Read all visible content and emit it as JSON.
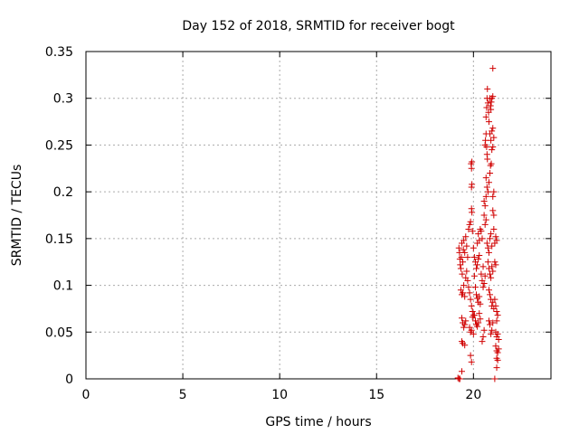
{
  "chart_data": {
    "type": "scatter",
    "title": "Day 152 of 2018, SRMTID for receiver bogt",
    "xlabel": "GPS time / hours",
    "ylabel": "SRMTID / TECUs",
    "xlim": [
      0,
      24
    ],
    "ylim": [
      0,
      0.35
    ],
    "xticks": [
      0,
      5,
      10,
      15,
      20
    ],
    "xtick_labels": [
      "0",
      "5",
      "10",
      "15",
      "20"
    ],
    "yticks": [
      0,
      0.05,
      0.1,
      0.15,
      0.2,
      0.25,
      0.3,
      0.35
    ],
    "ytick_labels": [
      "0",
      "0.05",
      "0.1",
      "0.15",
      "0.2",
      "0.25",
      "0.3",
      "0.35"
    ],
    "grid": true,
    "marker": "+",
    "series": [
      {
        "name": "SRMTID",
        "color": "#d00000",
        "points": [
          [
            19.2,
            0.001
          ],
          [
            19.25,
            0.0
          ],
          [
            19.3,
            0.0
          ],
          [
            19.4,
            0.008
          ],
          [
            19.25,
            0.14
          ],
          [
            19.28,
            0.135
          ],
          [
            19.3,
            0.128
          ],
          [
            19.32,
            0.122
          ],
          [
            19.35,
            0.118
          ],
          [
            19.38,
            0.13
          ],
          [
            19.4,
            0.145
          ],
          [
            19.42,
            0.112
          ],
          [
            19.45,
            0.125
          ],
          [
            19.48,
            0.138
          ],
          [
            19.35,
            0.095
          ],
          [
            19.4,
            0.09
          ],
          [
            19.45,
            0.092
          ],
          [
            19.5,
            0.1
          ],
          [
            19.55,
            0.088
          ],
          [
            19.6,
            0.108
          ],
          [
            19.4,
            0.065
          ],
          [
            19.45,
            0.06
          ],
          [
            19.5,
            0.055
          ],
          [
            19.55,
            0.058
          ],
          [
            19.6,
            0.062
          ],
          [
            19.4,
            0.04
          ],
          [
            19.45,
            0.038
          ],
          [
            19.55,
            0.036
          ],
          [
            19.5,
            0.148
          ],
          [
            19.55,
            0.135
          ],
          [
            19.6,
            0.152
          ],
          [
            19.65,
            0.142
          ],
          [
            19.7,
            0.13
          ],
          [
            19.75,
            0.16
          ],
          [
            19.8,
            0.165
          ],
          [
            19.85,
            0.168
          ],
          [
            19.65,
            0.115
          ],
          [
            19.7,
            0.105
          ],
          [
            19.75,
            0.098
          ],
          [
            19.8,
            0.092
          ],
          [
            19.85,
            0.085
          ],
          [
            19.9,
            0.078
          ],
          [
            19.95,
            0.072
          ],
          [
            20.0,
            0.068
          ],
          [
            19.8,
            0.055
          ],
          [
            19.85,
            0.05
          ],
          [
            19.9,
            0.052
          ],
          [
            19.95,
            0.066
          ],
          [
            20.0,
            0.048
          ],
          [
            19.85,
            0.025
          ],
          [
            19.9,
            0.018
          ],
          [
            19.88,
            0.23
          ],
          [
            19.9,
            0.225
          ],
          [
            19.92,
            0.232
          ],
          [
            19.9,
            0.205
          ],
          [
            19.92,
            0.208
          ],
          [
            19.9,
            0.182
          ],
          [
            19.92,
            0.178
          ],
          [
            19.95,
            0.158
          ],
          [
            20.0,
            0.14
          ],
          [
            20.05,
            0.13
          ],
          [
            20.1,
            0.125
          ],
          [
            20.15,
            0.118
          ],
          [
            20.2,
            0.122
          ],
          [
            20.25,
            0.128
          ],
          [
            20.3,
            0.132
          ],
          [
            20.05,
            0.11
          ],
          [
            20.1,
            0.098
          ],
          [
            20.15,
            0.09
          ],
          [
            20.2,
            0.086
          ],
          [
            20.25,
            0.082
          ],
          [
            20.3,
            0.088
          ],
          [
            20.35,
            0.08
          ],
          [
            20.05,
            0.068
          ],
          [
            20.1,
            0.062
          ],
          [
            20.15,
            0.058
          ],
          [
            20.2,
            0.056
          ],
          [
            20.25,
            0.06
          ],
          [
            20.3,
            0.07
          ],
          [
            20.35,
            0.064
          ],
          [
            20.2,
            0.145
          ],
          [
            20.25,
            0.155
          ],
          [
            20.3,
            0.148
          ],
          [
            20.35,
            0.16
          ],
          [
            20.4,
            0.158
          ],
          [
            20.45,
            0.15
          ],
          [
            20.4,
            0.112
          ],
          [
            20.45,
            0.105
          ],
          [
            20.5,
            0.098
          ],
          [
            20.55,
            0.102
          ],
          [
            20.6,
            0.11
          ],
          [
            20.5,
            0.12
          ],
          [
            20.45,
            0.04
          ],
          [
            20.5,
            0.045
          ],
          [
            20.55,
            0.052
          ],
          [
            20.55,
            0.19
          ],
          [
            20.6,
            0.185
          ],
          [
            20.65,
            0.195
          ],
          [
            20.55,
            0.175
          ],
          [
            20.6,
            0.165
          ],
          [
            20.65,
            0.17
          ],
          [
            20.6,
            0.25
          ],
          [
            20.62,
            0.255
          ],
          [
            20.65,
            0.262
          ],
          [
            20.68,
            0.248
          ],
          [
            20.7,
            0.24
          ],
          [
            20.72,
            0.235
          ],
          [
            20.65,
            0.28
          ],
          [
            20.68,
            0.29
          ],
          [
            20.7,
            0.3
          ],
          [
            20.72,
            0.31
          ],
          [
            20.75,
            0.295
          ],
          [
            20.78,
            0.285
          ],
          [
            20.8,
            0.275
          ],
          [
            20.65,
            0.215
          ],
          [
            20.7,
            0.205
          ],
          [
            20.75,
            0.2
          ],
          [
            20.8,
            0.21
          ],
          [
            20.85,
            0.22
          ],
          [
            20.7,
            0.145
          ],
          [
            20.75,
            0.14
          ],
          [
            20.8,
            0.135
          ],
          [
            20.85,
            0.15
          ],
          [
            20.9,
            0.155
          ],
          [
            20.95,
            0.142
          ],
          [
            20.75,
            0.125
          ],
          [
            20.8,
            0.118
          ],
          [
            20.85,
            0.112
          ],
          [
            20.9,
            0.108
          ],
          [
            20.95,
            0.12
          ],
          [
            21.0,
            0.115
          ],
          [
            20.8,
            0.095
          ],
          [
            20.85,
            0.09
          ],
          [
            20.9,
            0.085
          ],
          [
            20.95,
            0.078
          ],
          [
            21.0,
            0.082
          ],
          [
            21.05,
            0.075
          ],
          [
            20.8,
            0.062
          ],
          [
            20.85,
            0.058
          ],
          [
            20.9,
            0.048
          ],
          [
            20.95,
            0.052
          ],
          [
            21.0,
            0.06
          ],
          [
            20.85,
            0.3
          ],
          [
            20.88,
            0.292
          ],
          [
            20.9,
            0.288
          ],
          [
            20.92,
            0.296
          ],
          [
            20.95,
            0.3
          ],
          [
            21.0,
            0.302
          ],
          [
            20.85,
            0.262
          ],
          [
            20.9,
            0.255
          ],
          [
            20.95,
            0.265
          ],
          [
            21.0,
            0.268
          ],
          [
            21.05,
            0.258
          ],
          [
            20.88,
            0.228
          ],
          [
            20.92,
            0.23
          ],
          [
            20.95,
            0.245
          ],
          [
            21.0,
            0.248
          ],
          [
            21.0,
            0.332
          ],
          [
            21.0,
            0.18
          ],
          [
            21.05,
            0.175
          ],
          [
            21.0,
            0.195
          ],
          [
            21.05,
            0.2
          ],
          [
            21.05,
            0.16
          ],
          [
            21.1,
            0.145
          ],
          [
            21.15,
            0.152
          ],
          [
            21.2,
            0.148
          ],
          [
            21.1,
            0.125
          ],
          [
            21.15,
            0.122
          ],
          [
            21.1,
            0.085
          ],
          [
            21.15,
            0.078
          ],
          [
            21.2,
            0.072
          ],
          [
            21.25,
            0.068
          ],
          [
            21.2,
            0.062
          ],
          [
            21.15,
            0.05
          ],
          [
            21.2,
            0.045
          ],
          [
            21.25,
            0.048
          ],
          [
            21.3,
            0.042
          ],
          [
            21.15,
            0.035
          ],
          [
            21.2,
            0.03
          ],
          [
            21.25,
            0.028
          ],
          [
            21.3,
            0.032
          ],
          [
            21.2,
            0.022
          ],
          [
            21.25,
            0.02
          ],
          [
            21.2,
            0.012
          ],
          [
            21.1,
            0.0
          ]
        ]
      }
    ]
  }
}
